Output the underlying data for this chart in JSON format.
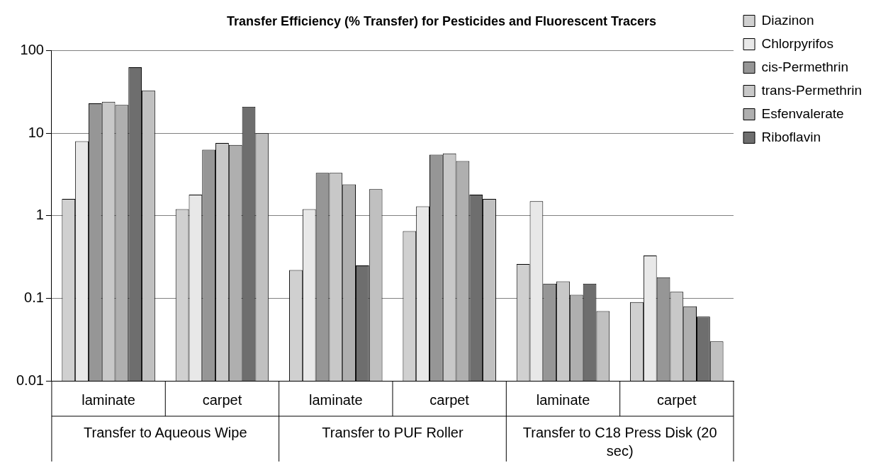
{
  "chart_data": {
    "type": "bar",
    "title": "Transfer Efficiency (% Transfer) for Pesticides and Fluorescent Tracers",
    "categories": [
      "laminate",
      "carpet",
      "laminate",
      "carpet",
      "laminate",
      "carpet"
    ],
    "annotations": [
      "Transfer to Aqueous Wipe",
      "Transfer to PUF Roller",
      "Transfer to C18 Press Disk (20 sec)"
    ],
    "series": [
      {
        "name": "Diazinon",
        "color": "#d0d0d0",
        "values": [
          1.6,
          1.2,
          0.22,
          0.65,
          0.26,
          0.09
        ]
      },
      {
        "name": "Chlorpyrifos",
        "color": "#e8e8e8",
        "values": [
          8,
          1.8,
          1.2,
          1.3,
          1.5,
          0.33
        ]
      },
      {
        "name": "cis-Permethrin",
        "color": "#969696",
        "values": [
          23,
          6.3,
          3.3,
          5.5,
          0.15,
          0.18
        ]
      },
      {
        "name": "trans-Permethrin",
        "color": "#c8c8c8",
        "values": [
          24,
          7.6,
          3.3,
          5.7,
          0.16,
          0.12
        ]
      },
      {
        "name": "Esfenvalerate",
        "color": "#afafaf",
        "values": [
          22,
          7.2,
          2.4,
          4.6,
          0.11,
          0.08
        ]
      },
      {
        "name": "Riboflavin",
        "color": "#6e6e6e",
        "values": [
          63,
          21,
          0.25,
          1.8,
          0.15,
          0.06
        ]
      },
      {
        "color": "#c0c0c0",
        "values": [
          33,
          10,
          2.1,
          1.6,
          0.07,
          0.03
        ]
      }
    ],
    "log": true,
    "ylim": [
      0.01,
      100
    ],
    "yticks": [
      0.01,
      0.1,
      1,
      10,
      100
    ],
    "grid": "y",
    "legend": "top right"
  }
}
